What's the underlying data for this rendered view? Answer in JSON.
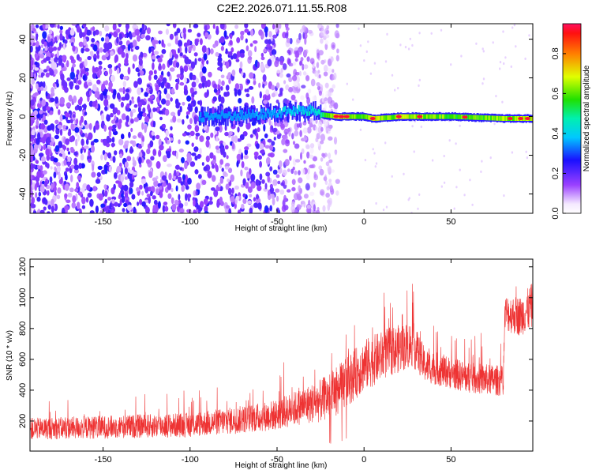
{
  "title": "C2E2.2026.071.11.55.R08",
  "colors": {
    "snr_line": "#ee3333",
    "spec_low": "#6a00ff",
    "spec_mid": "#00e070",
    "spec_high": "#ff2020",
    "axis": "#000000"
  },
  "chart_data": [
    {
      "type": "heatmap",
      "name": "spectrogram",
      "xlabel": "Height of straight line (km)",
      "ylabel": "Frequency (Hz)",
      "xlim": [
        -192,
        97
      ],
      "ylim": [
        -50,
        48
      ],
      "xticks": [
        -150,
        -100,
        -50,
        0,
        50
      ],
      "xtick_labels": [
        "-150",
        "-100",
        "-50",
        "0",
        "50"
      ],
      "yticks": [
        -40,
        -20,
        0,
        20,
        40
      ],
      "ytick_labels": [
        "-40",
        "-20",
        "0",
        "20",
        "40"
      ],
      "colorbar": {
        "label": "Normalized spectral amplitude",
        "range": [
          0.0,
          0.95
        ],
        "ticks": [
          0.0,
          0.2,
          0.4,
          0.6,
          0.8
        ],
        "tick_labels": [
          "0.0",
          "0.2",
          "0.4",
          "0.6",
          "0.8"
        ]
      },
      "ridge": {
        "description": "narrow carrier line near 0 Hz",
        "start_km": -95,
        "points": [
          {
            "x": -95,
            "freq": 0,
            "amp": 0.2
          },
          {
            "x": -60,
            "freq": 1,
            "amp": 0.35
          },
          {
            "x": -40,
            "freq": 3,
            "amp": 0.45
          },
          {
            "x": -28,
            "freq": 3,
            "amp": 0.5
          },
          {
            "x": -25,
            "freq": 1,
            "amp": 0.6
          },
          {
            "x": -15,
            "freq": 0,
            "amp": 0.9
          },
          {
            "x": 0,
            "freq": 0,
            "amp": 0.7
          },
          {
            "x": 5,
            "freq": -1,
            "amp": 0.9
          },
          {
            "x": 15,
            "freq": -0.5,
            "amp": 0.8
          },
          {
            "x": 20,
            "freq": 0,
            "amp": 0.85
          },
          {
            "x": 50,
            "freq": 0,
            "amp": 0.75
          },
          {
            "x": 80,
            "freq": -1,
            "amp": 0.8
          },
          {
            "x": 97,
            "freq": -1,
            "amp": 0.85
          }
        ]
      }
    },
    {
      "type": "line",
      "name": "snr",
      "xlabel": "Height of straight line (km)",
      "ylabel": "SNR (10 * v/v)",
      "xlim": [
        -192,
        97
      ],
      "ylim": [
        5,
        1250
      ],
      "xticks": [
        -150,
        -100,
        -50,
        0,
        50
      ],
      "xtick_labels": [
        "-150",
        "-100",
        "-50",
        "0",
        "50"
      ],
      "yticks": [
        200,
        400,
        600,
        800,
        1000,
        1200
      ],
      "ytick_labels": [
        "200",
        "400",
        "600",
        "800",
        "1000",
        "1200"
      ],
      "series": [
        {
          "name": "SNR",
          "description": "noisy SNR trace; envelope points (mean and spread)",
          "envelope": [
            {
              "x": -192,
              "mean": 150,
              "spread": 70
            },
            {
              "x": -150,
              "mean": 160,
              "spread": 75
            },
            {
              "x": -100,
              "mean": 175,
              "spread": 80
            },
            {
              "x": -70,
              "mean": 210,
              "spread": 90
            },
            {
              "x": -50,
              "mean": 240,
              "spread": 100
            },
            {
              "x": -35,
              "mean": 300,
              "spread": 120
            },
            {
              "x": -25,
              "mean": 330,
              "spread": 140
            },
            {
              "x": -15,
              "mean": 400,
              "spread": 160
            },
            {
              "x": 0,
              "mean": 560,
              "spread": 170
            },
            {
              "x": 15,
              "mean": 650,
              "spread": 160
            },
            {
              "x": 28,
              "mean": 700,
              "spread": 150
            },
            {
              "x": 35,
              "mean": 560,
              "spread": 110
            },
            {
              "x": 60,
              "mean": 480,
              "spread": 100
            },
            {
              "x": 80,
              "mean": 460,
              "spread": 100
            },
            {
              "x": 81,
              "mean": 900,
              "spread": 120
            },
            {
              "x": 90,
              "mean": 880,
              "spread": 130
            },
            {
              "x": 97,
              "mean": 950,
              "spread": 150
            }
          ]
        }
      ]
    }
  ]
}
